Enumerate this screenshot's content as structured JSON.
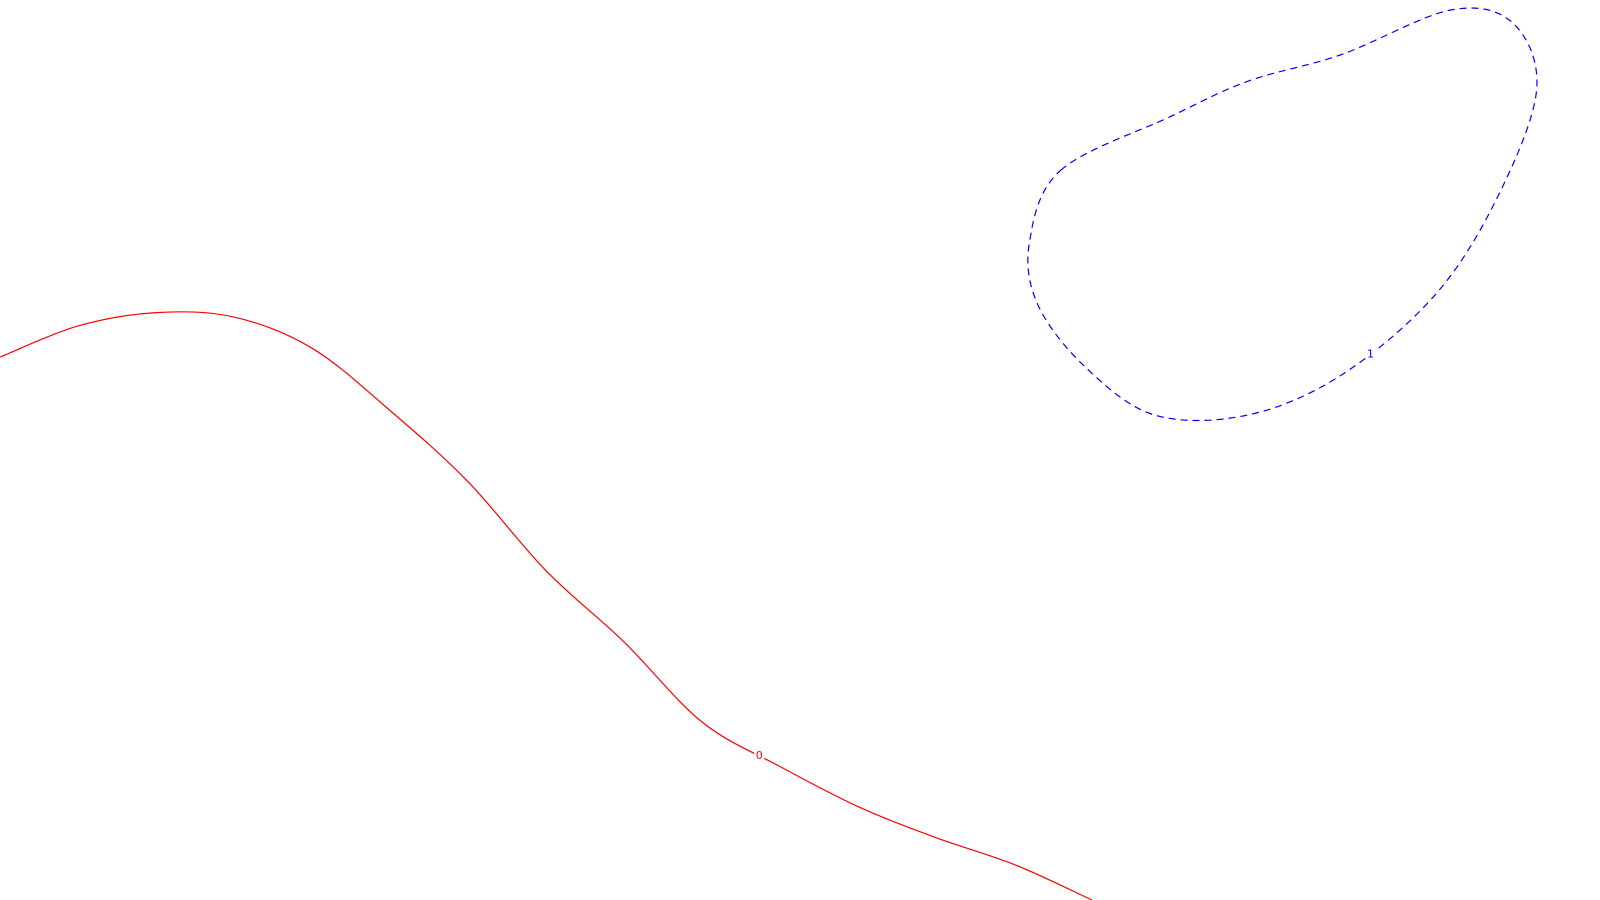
{
  "chart_data": {
    "type": "line",
    "title": "",
    "xlabel": "",
    "ylabel": "",
    "grid": false,
    "series": [
      {
        "label": "0",
        "color": "#ff0000",
        "line_style": "solid",
        "closed": false,
        "x": [
          0.0,
          0.05,
          0.1,
          0.15,
          0.2,
          0.25,
          0.3,
          0.35,
          0.4,
          0.45,
          0.5,
          0.55,
          0.6,
          0.65,
          0.7
        ],
        "y": [
          0.61,
          0.645,
          0.66,
          0.655,
          0.62,
          0.55,
          0.47,
          0.37,
          0.29,
          0.2,
          0.15,
          0.105,
          0.07,
          0.04,
          0.0
        ]
      },
      {
        "label": "1",
        "color": "#0000ff",
        "line_style": "dashed",
        "closed": true,
        "x": [
          0.68,
          0.75,
          0.8,
          0.86,
          0.93,
          0.97,
          0.985,
          0.96,
          0.92,
          0.86,
          0.8,
          0.74,
          0.695,
          0.665,
          0.66,
          0.68
        ],
        "y": [
          0.82,
          0.88,
          0.92,
          0.95,
          1.0,
          0.985,
          0.91,
          0.79,
          0.68,
          0.59,
          0.545,
          0.545,
          0.6,
          0.67,
          0.74,
          0.82
        ]
      }
    ]
  }
}
